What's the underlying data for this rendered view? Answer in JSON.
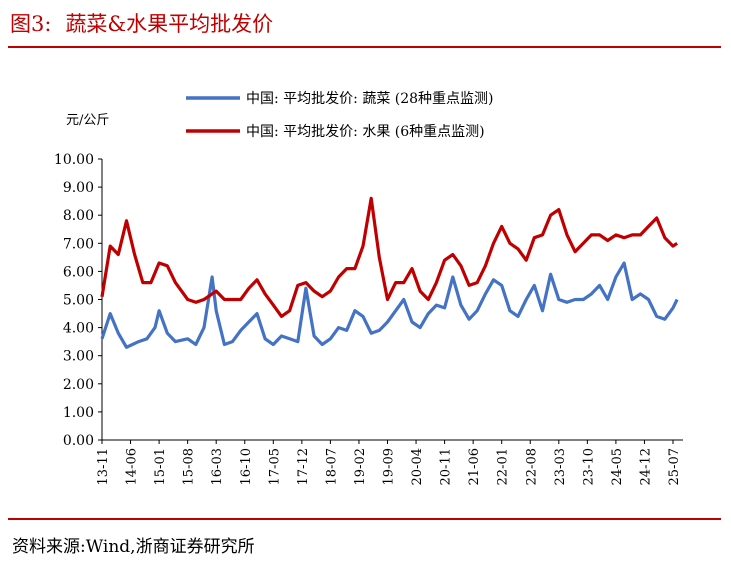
{
  "figure": {
    "title_label": "图3:",
    "title_text": "蔬菜&水果平均批发价",
    "source_text": "资料来源:Wind,浙商证券研究所"
  },
  "colors": {
    "accent": "#c00000",
    "vegetable": "#4472c4",
    "fruit": "#c00000"
  },
  "chart_data": {
    "type": "line",
    "title": "",
    "ylabel": "元/公斤",
    "xlabel": "",
    "ylim": [
      0,
      10
    ],
    "yticks": [
      "0.00",
      "1.00",
      "2.00",
      "3.00",
      "4.00",
      "5.00",
      "6.00",
      "7.00",
      "8.00",
      "9.00",
      "10.00"
    ],
    "xticks": [
      "13-11",
      "14-06",
      "15-01",
      "15-08",
      "16-03",
      "16-10",
      "17-05",
      "17-12",
      "18-07",
      "19-02",
      "19-09",
      "20-04",
      "20-11",
      "21-06",
      "22-01",
      "22-08",
      "23-03",
      "23-10",
      "24-05",
      "24-12",
      "25-07"
    ],
    "legend": "top",
    "grid": false,
    "series": [
      {
        "name": "中国: 平均批发价: 蔬菜 (28种重点监测)",
        "color": "#4472c4",
        "points": [
          [
            "13-11",
            3.6
          ],
          [
            "14-01",
            4.5
          ],
          [
            "14-03",
            3.8
          ],
          [
            "14-05",
            3.3
          ],
          [
            "14-08",
            3.5
          ],
          [
            "14-10",
            3.6
          ],
          [
            "14-12",
            4.0
          ],
          [
            "15-01",
            4.6
          ],
          [
            "15-03",
            3.8
          ],
          [
            "15-05",
            3.5
          ],
          [
            "15-08",
            3.6
          ],
          [
            "15-10",
            3.4
          ],
          [
            "15-12",
            4.0
          ],
          [
            "16-02",
            5.8
          ],
          [
            "16-03",
            4.6
          ],
          [
            "16-05",
            3.4
          ],
          [
            "16-07",
            3.5
          ],
          [
            "16-09",
            3.9
          ],
          [
            "16-11",
            4.2
          ],
          [
            "17-01",
            4.5
          ],
          [
            "17-03",
            3.6
          ],
          [
            "17-05",
            3.4
          ],
          [
            "17-07",
            3.7
          ],
          [
            "17-09",
            3.6
          ],
          [
            "17-11",
            3.5
          ],
          [
            "18-01",
            5.4
          ],
          [
            "18-03",
            3.7
          ],
          [
            "18-05",
            3.4
          ],
          [
            "18-07",
            3.6
          ],
          [
            "18-09",
            4.0
          ],
          [
            "18-11",
            3.9
          ],
          [
            "19-01",
            4.6
          ],
          [
            "19-03",
            4.4
          ],
          [
            "19-05",
            3.8
          ],
          [
            "19-07",
            3.9
          ],
          [
            "19-09",
            4.2
          ],
          [
            "19-11",
            4.6
          ],
          [
            "20-01",
            5.0
          ],
          [
            "20-03",
            4.2
          ],
          [
            "20-05",
            4.0
          ],
          [
            "20-07",
            4.5
          ],
          [
            "20-09",
            4.8
          ],
          [
            "20-11",
            4.7
          ],
          [
            "21-01",
            5.8
          ],
          [
            "21-03",
            4.8
          ],
          [
            "21-05",
            4.3
          ],
          [
            "21-07",
            4.6
          ],
          [
            "21-09",
            5.2
          ],
          [
            "21-11",
            5.7
          ],
          [
            "22-01",
            5.5
          ],
          [
            "22-03",
            4.6
          ],
          [
            "22-05",
            4.4
          ],
          [
            "22-07",
            5.0
          ],
          [
            "22-09",
            5.5
          ],
          [
            "22-11",
            4.6
          ],
          [
            "23-01",
            5.9
          ],
          [
            "23-03",
            5.0
          ],
          [
            "23-05",
            4.9
          ],
          [
            "23-07",
            5.0
          ],
          [
            "23-09",
            5.0
          ],
          [
            "23-11",
            5.2
          ],
          [
            "24-01",
            5.5
          ],
          [
            "24-03",
            5.0
          ],
          [
            "24-05",
            5.8
          ],
          [
            "24-07",
            6.3
          ],
          [
            "24-09",
            5.0
          ],
          [
            "24-11",
            5.2
          ],
          [
            "25-01",
            5.0
          ],
          [
            "25-03",
            4.4
          ],
          [
            "25-05",
            4.3
          ],
          [
            "25-07",
            4.7
          ],
          [
            "25-08",
            5.0
          ]
        ]
      },
      {
        "name": "中国: 平均批发价: 水果 (6种重点监测)",
        "color": "#c00000",
        "points": [
          [
            "13-11",
            5.1
          ],
          [
            "14-01",
            6.9
          ],
          [
            "14-03",
            6.6
          ],
          [
            "14-05",
            7.8
          ],
          [
            "14-07",
            6.6
          ],
          [
            "14-09",
            5.6
          ],
          [
            "14-11",
            5.6
          ],
          [
            "15-01",
            6.3
          ],
          [
            "15-03",
            6.2
          ],
          [
            "15-05",
            5.6
          ],
          [
            "15-08",
            5.0
          ],
          [
            "15-10",
            4.9
          ],
          [
            "15-12",
            5.0
          ],
          [
            "16-02",
            5.2
          ],
          [
            "16-03",
            5.3
          ],
          [
            "16-05",
            5.0
          ],
          [
            "16-07",
            5.0
          ],
          [
            "16-09",
            5.0
          ],
          [
            "16-11",
            5.4
          ],
          [
            "17-01",
            5.7
          ],
          [
            "17-03",
            5.2
          ],
          [
            "17-05",
            4.8
          ],
          [
            "17-07",
            4.4
          ],
          [
            "17-09",
            4.6
          ],
          [
            "17-11",
            5.5
          ],
          [
            "18-01",
            5.6
          ],
          [
            "18-03",
            5.3
          ],
          [
            "18-05",
            5.1
          ],
          [
            "18-07",
            5.3
          ],
          [
            "18-09",
            5.8
          ],
          [
            "18-11",
            6.1
          ],
          [
            "19-01",
            6.1
          ],
          [
            "19-03",
            6.9
          ],
          [
            "19-05",
            8.6
          ],
          [
            "19-07",
            6.5
          ],
          [
            "19-09",
            5.0
          ],
          [
            "19-11",
            5.6
          ],
          [
            "20-01",
            5.6
          ],
          [
            "20-03",
            6.1
          ],
          [
            "20-05",
            5.3
          ],
          [
            "20-07",
            5.0
          ],
          [
            "20-09",
            5.6
          ],
          [
            "20-11",
            6.4
          ],
          [
            "21-01",
            6.6
          ],
          [
            "21-03",
            6.2
          ],
          [
            "21-05",
            5.5
          ],
          [
            "21-07",
            5.6
          ],
          [
            "21-09",
            6.2
          ],
          [
            "21-11",
            7.0
          ],
          [
            "22-01",
            7.6
          ],
          [
            "22-03",
            7.0
          ],
          [
            "22-05",
            6.8
          ],
          [
            "22-07",
            6.4
          ],
          [
            "22-09",
            7.2
          ],
          [
            "22-11",
            7.3
          ],
          [
            "23-01",
            8.0
          ],
          [
            "23-03",
            8.2
          ],
          [
            "23-05",
            7.3
          ],
          [
            "23-07",
            6.7
          ],
          [
            "23-09",
            7.0
          ],
          [
            "23-11",
            7.3
          ],
          [
            "24-01",
            7.3
          ],
          [
            "24-03",
            7.1
          ],
          [
            "24-05",
            7.3
          ],
          [
            "24-07",
            7.2
          ],
          [
            "24-09",
            7.3
          ],
          [
            "24-11",
            7.3
          ],
          [
            "25-01",
            7.6
          ],
          [
            "25-03",
            7.9
          ],
          [
            "25-05",
            7.2
          ],
          [
            "25-07",
            6.9
          ],
          [
            "25-08",
            7.0
          ]
        ]
      }
    ]
  }
}
